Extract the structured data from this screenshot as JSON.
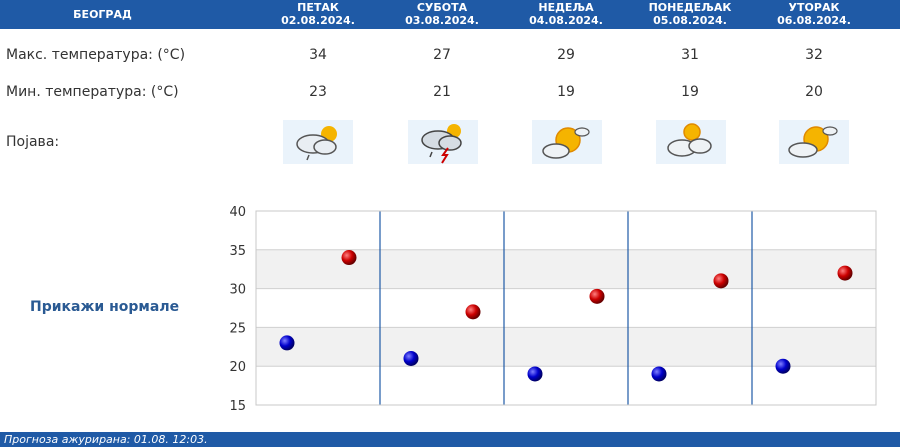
{
  "header": {
    "city": "БЕОГРАД",
    "days": [
      {
        "name": "ПЕТАК",
        "date": "02.08.2024."
      },
      {
        "name": "СУБОТА",
        "date": "03.08.2024."
      },
      {
        "name": "НЕДЕЉА",
        "date": "04.08.2024."
      },
      {
        "name": "ПОНЕДЕЉАК",
        "date": "05.08.2024."
      },
      {
        "name": "УТОРАК",
        "date": "06.08.2024."
      }
    ]
  },
  "rows": {
    "max_label": "Макс. температура: (°C)",
    "min_label": "Мин. температура: (°C)",
    "phenomenon_label": "Појава:",
    "max_values": [
      "34",
      "27",
      "29",
      "31",
      "32"
    ],
    "min_values": [
      "23",
      "21",
      "19",
      "19",
      "20"
    ],
    "icons": [
      "partly-cloudy-light-rain-icon",
      "thunderstorm-rain-icon",
      "sunny-cloud-icon",
      "partly-cloudy-sun-icon",
      "sunny-cloud-icon"
    ]
  },
  "show_normals": "Прикажи нормале",
  "footer": {
    "text": "Прогноза ажурирана:  01.08. 12:03."
  },
  "colors": {
    "header_bg": "#1f5aa6",
    "max_marker": "#cc0000",
    "min_marker": "#0000cc"
  },
  "chart_data": {
    "type": "scatter",
    "categories": [
      "02.08.2024.",
      "03.08.2024.",
      "04.08.2024.",
      "05.08.2024.",
      "06.08.2024."
    ],
    "series": [
      {
        "values": [
          34,
          27,
          29,
          31,
          32
        ],
        "color": "#cc0000"
      },
      {
        "values": [
          23,
          21,
          19,
          19,
          20
        ],
        "color": "#0000cc"
      }
    ],
    "ylim": [
      15,
      40
    ],
    "yticks": [
      "15",
      "20",
      "25",
      "30",
      "35",
      "40"
    ],
    "grid": true
  }
}
